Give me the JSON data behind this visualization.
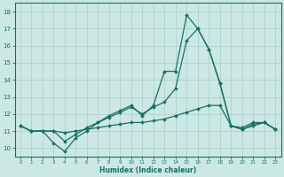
{
  "xlabel": "Humidex (Indice chaleur)",
  "xlim": [
    -0.5,
    23.5
  ],
  "ylim": [
    9.5,
    18.5
  ],
  "yticks": [
    10,
    11,
    12,
    13,
    14,
    15,
    16,
    17,
    18
  ],
  "xticks": [
    0,
    1,
    2,
    3,
    4,
    5,
    6,
    7,
    8,
    9,
    10,
    11,
    12,
    13,
    14,
    15,
    16,
    17,
    18,
    19,
    20,
    21,
    22,
    23
  ],
  "bg_color": "#cce8e4",
  "grid_color": "#aaccca",
  "line_color": "#1a6e65",
  "series": [
    {
      "x": [
        0,
        1,
        2,
        3,
        4,
        5,
        6,
        7,
        8,
        9,
        10,
        11,
        12,
        13,
        14,
        15,
        16,
        17,
        18,
        19,
        20,
        21,
        22,
        23
      ],
      "y": [
        11.3,
        11.0,
        11.0,
        10.3,
        9.8,
        10.6,
        11.0,
        11.5,
        11.9,
        12.2,
        12.5,
        11.9,
        12.5,
        14.5,
        14.5,
        17.8,
        17.0,
        15.8,
        13.8,
        11.3,
        11.2,
        11.5,
        11.5,
        11.1
      ]
    },
    {
      "x": [
        0,
        1,
        2,
        3,
        4,
        5,
        6,
        7,
        8,
        9,
        10,
        11,
        12,
        13,
        14,
        15,
        16,
        17,
        18,
        19,
        20,
        21,
        22,
        23
      ],
      "y": [
        11.3,
        11.0,
        11.0,
        11.0,
        10.4,
        10.8,
        11.2,
        11.5,
        11.8,
        12.1,
        12.4,
        12.0,
        12.4,
        12.7,
        13.5,
        16.3,
        17.0,
        15.8,
        13.8,
        11.3,
        11.1,
        11.4,
        11.5,
        11.1
      ]
    },
    {
      "x": [
        0,
        1,
        2,
        3,
        4,
        5,
        6,
        7,
        8,
        9,
        10,
        11,
        12,
        13,
        14,
        15,
        16,
        17,
        18,
        19,
        20,
        21,
        22,
        23
      ],
      "y": [
        11.3,
        11.0,
        11.0,
        11.0,
        10.9,
        11.0,
        11.1,
        11.2,
        11.3,
        11.4,
        11.5,
        11.5,
        11.6,
        11.7,
        11.9,
        12.1,
        12.3,
        12.5,
        12.5,
        11.3,
        11.1,
        11.3,
        11.5,
        11.1
      ]
    }
  ]
}
